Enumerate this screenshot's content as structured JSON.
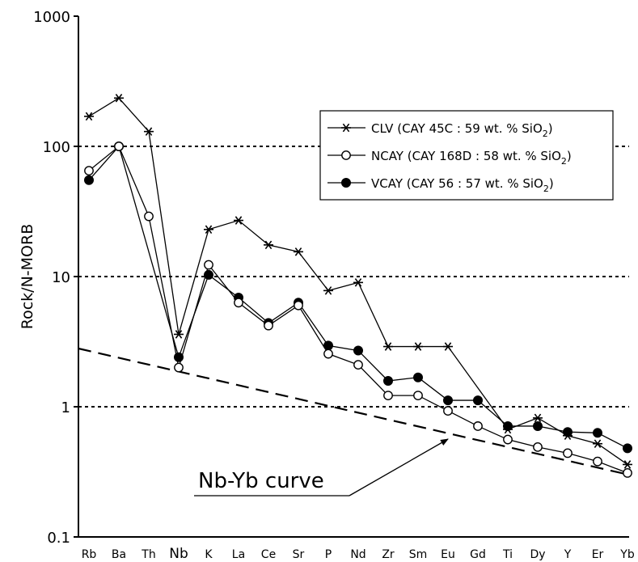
{
  "chart_data": {
    "type": "line",
    "ylabel": "Rock/N-MORB",
    "xlabel": "",
    "yscale": "log",
    "ylim": [
      0.1,
      1000
    ],
    "yticks": [
      "0.1",
      "1",
      "10",
      "100",
      "1000"
    ],
    "grid": "dotted horizontal lines at 1, 10 and 100",
    "legend_position": "top-right",
    "categories": [
      "Rb",
      "Ba",
      "Th",
      "Nb",
      "K",
      "La",
      "Ce",
      "Sr",
      "P",
      "Nd",
      "Zr",
      "Sm",
      "Eu",
      "Gd",
      "Ti",
      "Dy",
      "Y",
      "Er",
      "Yb"
    ],
    "series": [
      {
        "name": "CLV (CAY 45C : 59 wt. % SiO2)",
        "legend_main": "CLV (CAY 45C : 59 wt. % SiO",
        "legend_sub": "2",
        "legend_tail": ")",
        "marker": "asterisk",
        "values": [
          170,
          235,
          130,
          3.6,
          23,
          27,
          17.5,
          15.5,
          7.8,
          9,
          2.9,
          2.9,
          2.9,
          null,
          0.67,
          0.82,
          0.6,
          0.52,
          0.36
        ]
      },
      {
        "name": "NCAY (CAY 168D : 58 wt. % SiO2)",
        "legend_main": "NCAY (CAY 168D : 58 wt. % SiO",
        "legend_sub": "2",
        "legend_tail": ")",
        "marker": "open-circle",
        "values": [
          65,
          100,
          29,
          2.0,
          12.3,
          6.3,
          4.2,
          6.0,
          2.55,
          2.1,
          1.22,
          1.22,
          0.93,
          0.71,
          0.56,
          0.49,
          0.44,
          0.38,
          0.31
        ]
      },
      {
        "name": "VCAY (CAY 56 : 57 wt. % SiO2)",
        "legend_main": "VCAY (CAY 56 : 57 wt. % SiO",
        "legend_sub": "2",
        "legend_tail": ")",
        "marker": "filled-circle",
        "values": [
          55,
          100,
          null,
          2.4,
          10.3,
          6.9,
          4.4,
          6.3,
          2.95,
          2.7,
          1.58,
          1.68,
          1.12,
          1.12,
          0.71,
          0.71,
          0.64,
          0.63,
          0.48
        ]
      }
    ],
    "reference_line": {
      "label": "Nb-Yb curve",
      "style": "dashed",
      "start_value": 2.8,
      "end_value": 0.3
    }
  }
}
